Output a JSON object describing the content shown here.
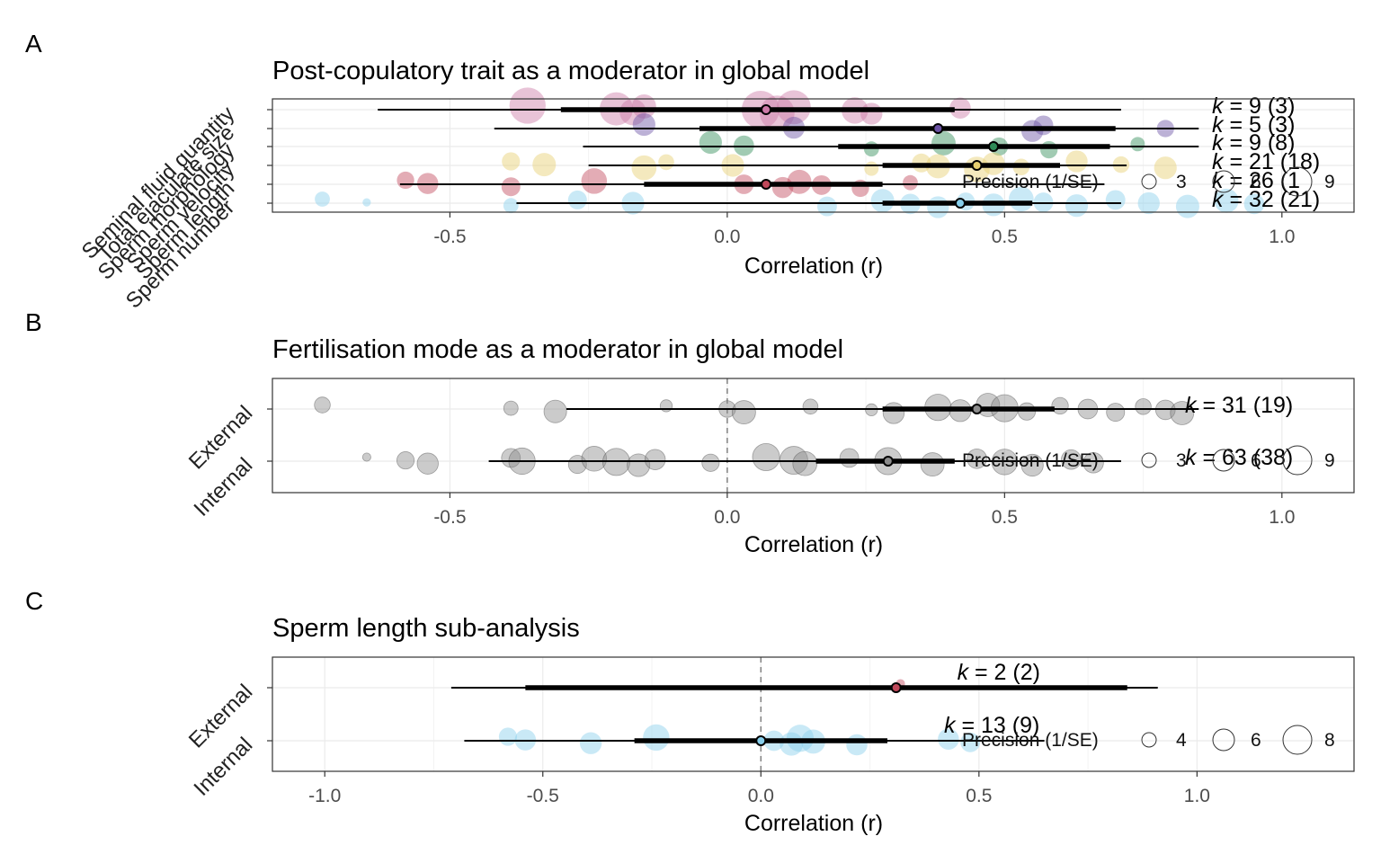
{
  "figure": {
    "panel_letters": [
      "A",
      "B",
      "C"
    ],
    "legend": {
      "title": "Precision (1/SE)",
      "sizes_ab": [
        "3",
        "6",
        "9"
      ],
      "sizes_c": [
        "4",
        "6",
        "8"
      ]
    }
  },
  "colors": {
    "seminal": "#cc79a7",
    "ejaculate": "#6a51a3",
    "morphology": "#2e8b57",
    "velocity": "#e6cf6f",
    "length": "#c0485a",
    "number": "#87ceeb",
    "grey": "#8c8c8c",
    "grid": "#ebebeb",
    "zero_line": "#808080"
  },
  "chart_data": [
    {
      "type": "scatter",
      "title": "Post-copulatory trait as a moderator in global model",
      "xlabel": "Correlation (r)",
      "xlim": [
        -0.82,
        1.13
      ],
      "xticks": [
        "-0.5",
        "0.0",
        "0.5",
        "1.0"
      ],
      "xtick_values": [
        -0.5,
        0,
        0.5,
        1.0
      ],
      "rows": [
        {
          "label": "Seminal fluid quantity",
          "color": "seminal",
          "estimate": 0.07,
          "ci": [
            -0.3,
            0.41
          ],
          "pi": [
            -0.63,
            0.71
          ],
          "k_label": "= 9 (3)",
          "points": [
            [
              -0.36,
              4.8
            ],
            [
              -0.2,
              4.4
            ],
            [
              -0.17,
              3.5
            ],
            [
              -0.15,
              3.2
            ],
            [
              0.06,
              5.0
            ],
            [
              0.09,
              4.6
            ],
            [
              0.12,
              4.5
            ],
            [
              0.23,
              3.5
            ],
            [
              0.26,
              2.9
            ],
            [
              0.42,
              2.8
            ]
          ]
        },
        {
          "label": "Total ejaculate size",
          "color": "ejaculate",
          "estimate": 0.38,
          "ci": [
            -0.05,
            0.7
          ],
          "pi": [
            -0.42,
            0.85
          ],
          "k_label": "= 5 (3)",
          "points": [
            [
              -0.15,
              3.0
            ],
            [
              0.12,
              2.9
            ],
            [
              0.55,
              2.9
            ],
            [
              0.57,
              2.6
            ],
            [
              0.79,
              2.3
            ]
          ]
        },
        {
          "label": "Sperm morphology",
          "color": "morphology",
          "estimate": 0.48,
          "ci": [
            0.2,
            0.69
          ],
          "pi": [
            -0.26,
            0.85
          ],
          "k_label": "= 9 (8)",
          "points": [
            [
              -0.03,
              3.0
            ],
            [
              0.03,
              2.7
            ],
            [
              0.26,
              2.0
            ],
            [
              0.39,
              3.2
            ],
            [
              0.49,
              2.4
            ],
            [
              0.58,
              2.3
            ],
            [
              0.74,
              1.9
            ]
          ]
        },
        {
          "label": "Sperm velocity",
          "color": "velocity",
          "estimate": 0.45,
          "ci": [
            0.28,
            0.6
          ],
          "pi": [
            -0.25,
            0.72
          ],
          "k_label": "= 21 (18)",
          "points": [
            [
              -0.39,
              2.4
            ],
            [
              -0.33,
              3.1
            ],
            [
              -0.15,
              3.3
            ],
            [
              -0.11,
              2.1
            ],
            [
              0.01,
              3.0
            ],
            [
              0.26,
              1.9
            ],
            [
              0.35,
              2.5
            ],
            [
              0.38,
              3.2
            ],
            [
              0.45,
              3.4
            ],
            [
              0.48,
              3.0
            ],
            [
              0.53,
              2.2
            ],
            [
              0.63,
              2.9
            ],
            [
              0.71,
              2.2
            ],
            [
              0.79,
              3.0
            ]
          ]
        },
        {
          "label": "Sperm length",
          "color": "length",
          "estimate": 0.07,
          "ci": [
            -0.15,
            0.28
          ],
          "pi": [
            -0.59,
            0.68
          ],
          "k_label": "= 26 (1",
          "points": [
            [
              -0.58,
              2.3
            ],
            [
              -0.54,
              2.8
            ],
            [
              -0.39,
              2.5
            ],
            [
              -0.24,
              3.4
            ],
            [
              0.03,
              2.6
            ],
            [
              0.1,
              2.8
            ],
            [
              0.13,
              3.2
            ],
            [
              0.17,
              2.6
            ],
            [
              0.24,
              2.3
            ],
            [
              0.33,
              2.0
            ]
          ]
        },
        {
          "label": "Sperm number",
          "color": "number",
          "estimate": 0.42,
          "ci": [
            0.28,
            0.55
          ],
          "pi": [
            -0.38,
            0.71
          ],
          "k_label": "= 32 (21)",
          "points": [
            [
              -0.73,
              2.0
            ],
            [
              -0.65,
              1.1
            ],
            [
              -0.39,
              2.0
            ],
            [
              -0.27,
              2.5
            ],
            [
              -0.17,
              3.0
            ],
            [
              0.18,
              2.6
            ],
            [
              0.28,
              3.1
            ],
            [
              0.33,
              2.7
            ],
            [
              0.38,
              2.9
            ],
            [
              0.43,
              2.4
            ],
            [
              0.48,
              3.0
            ],
            [
              0.53,
              3.3
            ],
            [
              0.57,
              2.6
            ],
            [
              0.63,
              3.0
            ],
            [
              0.7,
              2.6
            ],
            [
              0.76,
              2.9
            ],
            [
              0.83,
              3.1
            ],
            [
              0.9,
              3.2
            ],
            [
              0.95,
              2.7
            ]
          ]
        }
      ]
    },
    {
      "type": "scatter",
      "title": "Fertilisation mode as a moderator in global model",
      "xlabel": "Correlation (r)",
      "xlim": [
        -0.82,
        1.13
      ],
      "xticks": [
        "-0.5",
        "0.0",
        "0.5",
        "1.0"
      ],
      "xtick_values": [
        -0.5,
        0,
        0.5,
        1.0
      ],
      "rows": [
        {
          "label": "External",
          "color": "grey",
          "estimate": 0.45,
          "ci": [
            0.28,
            0.59
          ],
          "pi": [
            -0.29,
            0.85
          ],
          "k_label": "= 31 (19)",
          "points": [
            [
              -0.73,
              2.1
            ],
            [
              -0.39,
              1.9
            ],
            [
              -0.31,
              3.0
            ],
            [
              -0.11,
              1.6
            ],
            [
              0.0,
              2.2
            ],
            [
              0.03,
              3.1
            ],
            [
              0.15,
              2.0
            ],
            [
              0.26,
              1.6
            ],
            [
              0.3,
              2.8
            ],
            [
              0.38,
              3.5
            ],
            [
              0.42,
              2.9
            ],
            [
              0.47,
              3.1
            ],
            [
              0.5,
              3.6
            ],
            [
              0.54,
              2.3
            ],
            [
              0.6,
              2.2
            ],
            [
              0.65,
              2.6
            ],
            [
              0.7,
              2.4
            ],
            [
              0.75,
              2.1
            ],
            [
              0.79,
              2.6
            ],
            [
              0.82,
              3.1
            ]
          ]
        },
        {
          "label": "Internal",
          "color": "grey",
          "estimate": 0.29,
          "ci": [
            0.16,
            0.41
          ],
          "pi": [
            -0.43,
            0.71
          ],
          "k_label": "= 63 (38)",
          "points": [
            [
              -0.65,
              1.1
            ],
            [
              -0.58,
              2.3
            ],
            [
              -0.54,
              2.8
            ],
            [
              -0.39,
              2.5
            ],
            [
              -0.37,
              3.5
            ],
            [
              -0.27,
              2.4
            ],
            [
              -0.24,
              3.3
            ],
            [
              -0.2,
              3.6
            ],
            [
              -0.16,
              3.0
            ],
            [
              -0.13,
              2.7
            ],
            [
              -0.03,
              2.3
            ],
            [
              0.07,
              3.6
            ],
            [
              0.12,
              3.7
            ],
            [
              0.14,
              3.2
            ],
            [
              0.22,
              2.5
            ],
            [
              0.29,
              3.6
            ],
            [
              0.37,
              3.1
            ],
            [
              0.45,
              2.6
            ],
            [
              0.5,
              3.4
            ],
            [
              0.55,
              2.9
            ],
            [
              0.62,
              2.6
            ],
            [
              0.66,
              2.7
            ]
          ]
        }
      ]
    },
    {
      "type": "scatter",
      "title": "Sperm length sub-analysis",
      "xlabel": "Correlation (r)",
      "xlim": [
        -1.12,
        1.36
      ],
      "xticks": [
        "-1.0",
        "-0.5",
        "0.0",
        "0.5",
        "1.0"
      ],
      "xtick_values": [
        -1.0,
        -0.5,
        0,
        0.5,
        1.0
      ],
      "rows": [
        {
          "label": "External",
          "color": "length",
          "estimate": 0.31,
          "ci": [
            -0.54,
            0.84
          ],
          "pi": [
            -0.71,
            0.91
          ],
          "k_label": "= 2 (2)",
          "points": [
            [
              0.32,
              1.2
            ]
          ]
        },
        {
          "label": "Internal",
          "color": "number",
          "estimate": 0.0,
          "ci": [
            -0.29,
            0.29
          ],
          "pi": [
            -0.68,
            0.65
          ],
          "k_label": "= 13 (9)",
          "points": [
            [
              -0.58,
              2.4
            ],
            [
              -0.54,
              2.8
            ],
            [
              -0.39,
              2.9
            ],
            [
              -0.24,
              3.5
            ],
            [
              0.03,
              2.7
            ],
            [
              0.07,
              3.1
            ],
            [
              0.09,
              3.6
            ],
            [
              0.12,
              3.2
            ],
            [
              0.22,
              2.8
            ],
            [
              0.43,
              2.8
            ],
            [
              0.48,
              2.6
            ]
          ]
        }
      ]
    }
  ]
}
